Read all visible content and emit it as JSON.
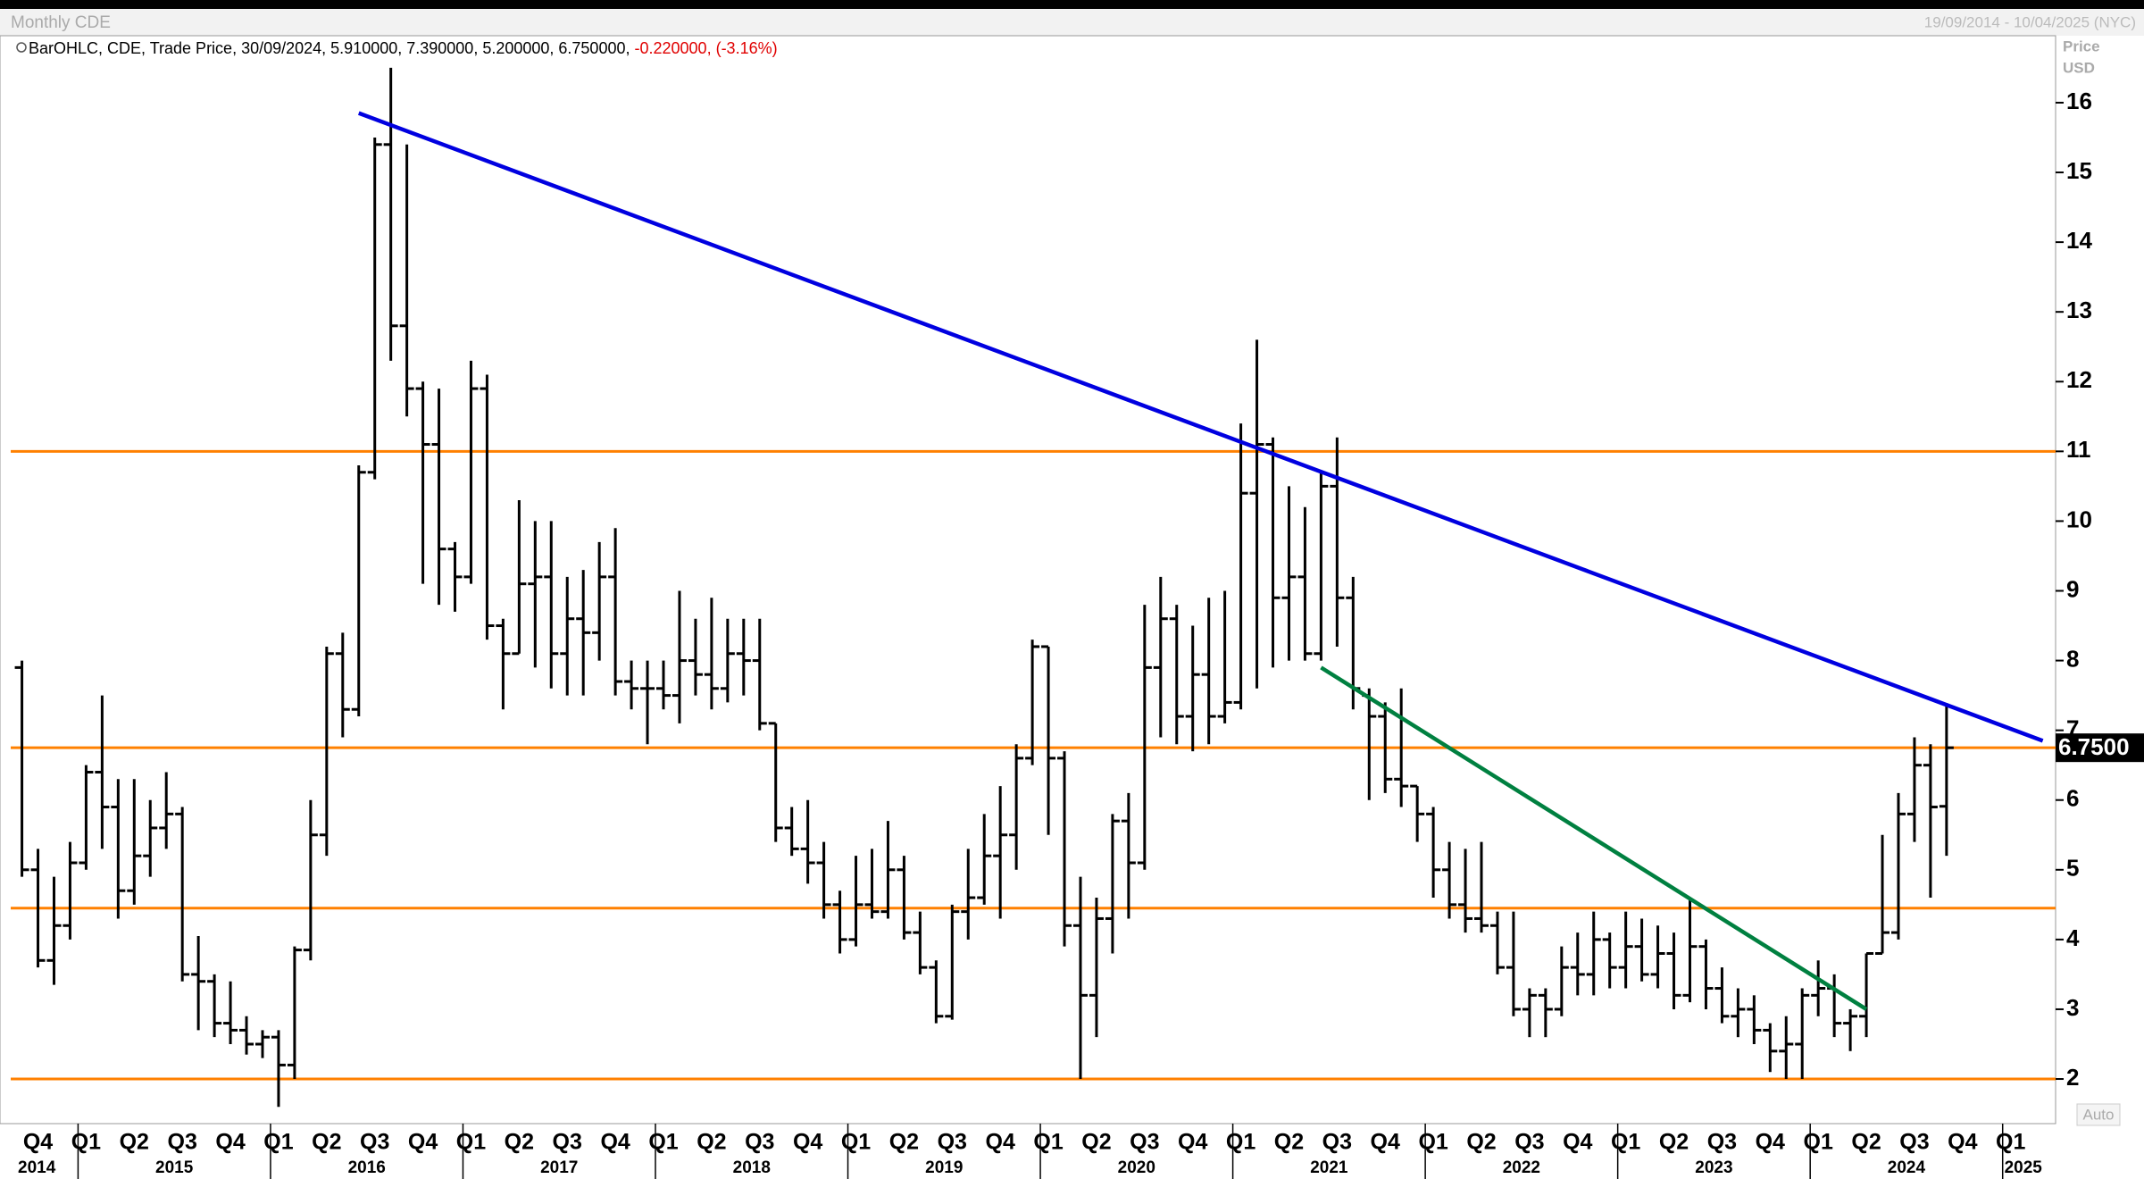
{
  "chart_data": {
    "type": "ohlc",
    "title": "Monthly CDE",
    "date_range": "19/09/2014 - 10/04/2025 (NYC)",
    "legend_text": "BarOHLC, CDE, Trade Price, 30/09/2024, 5.910000, 7.390000, 5.200000, 6.750000,",
    "legend_change": "-0.220000, (-3.16%)",
    "y_label": [
      "Price",
      "USD"
    ],
    "scale_mode": "Auto",
    "color": "#000000",
    "x": [
      "2014-09",
      "2014-10",
      "2014-11",
      "2014-12",
      "2015-01",
      "2015-02",
      "2015-03",
      "2015-04",
      "2015-05",
      "2015-06",
      "2015-07",
      "2015-08",
      "2015-09",
      "2015-10",
      "2015-11",
      "2015-12",
      "2016-01",
      "2016-02",
      "2016-03",
      "2016-04",
      "2016-05",
      "2016-06",
      "2016-07",
      "2016-08",
      "2016-09",
      "2016-10",
      "2016-11",
      "2016-12",
      "2017-01",
      "2017-02",
      "2017-03",
      "2017-04",
      "2017-05",
      "2017-06",
      "2017-07",
      "2017-08",
      "2017-09",
      "2017-10",
      "2017-11",
      "2017-12",
      "2018-01",
      "2018-02",
      "2018-03",
      "2018-04",
      "2018-05",
      "2018-06",
      "2018-07",
      "2018-08",
      "2018-09",
      "2018-10",
      "2018-11",
      "2018-12",
      "2019-01",
      "2019-02",
      "2019-03",
      "2019-04",
      "2019-05",
      "2019-06",
      "2019-07",
      "2019-08",
      "2019-09",
      "2019-10",
      "2019-11",
      "2019-12",
      "2020-01",
      "2020-02",
      "2020-03",
      "2020-04",
      "2020-05",
      "2020-06",
      "2020-07",
      "2020-08",
      "2020-09",
      "2020-10",
      "2020-11",
      "2020-12",
      "2021-01",
      "2021-02",
      "2021-03",
      "2021-04",
      "2021-05",
      "2021-06",
      "2021-07",
      "2021-08",
      "2021-09",
      "2021-10",
      "2021-11",
      "2021-12",
      "2022-01",
      "2022-02",
      "2022-03",
      "2022-04",
      "2022-05",
      "2022-06",
      "2022-07",
      "2022-08",
      "2022-09",
      "2022-10",
      "2022-11",
      "2022-12",
      "2023-01",
      "2023-02",
      "2023-03",
      "2023-04",
      "2023-05",
      "2023-06",
      "2023-07",
      "2023-08",
      "2023-09",
      "2023-10",
      "2023-11",
      "2023-12",
      "2024-01",
      "2024-02",
      "2024-03",
      "2024-04",
      "2024-05",
      "2024-06",
      "2024-07",
      "2024-08",
      "2024-09"
    ],
    "open": [
      7.9,
      5.0,
      3.7,
      4.2,
      5.1,
      6.4,
      5.9,
      4.7,
      5.2,
      5.6,
      5.8,
      3.5,
      3.4,
      2.8,
      2.7,
      2.5,
      2.6,
      2.2,
      3.85,
      5.5,
      8.1,
      7.3,
      10.7,
      15.4,
      12.8,
      11.9,
      11.1,
      9.6,
      9.2,
      11.9,
      8.5,
      8.1,
      9.1,
      9.2,
      8.1,
      8.6,
      8.4,
      9.2,
      7.7,
      7.6,
      7.6,
      7.5,
      8.0,
      7.8,
      7.6,
      8.1,
      8.0,
      7.1,
      5.6,
      5.3,
      5.1,
      4.5,
      4.0,
      4.5,
      4.4,
      5.0,
      4.1,
      3.6,
      2.9,
      4.4,
      4.6,
      5.2,
      5.5,
      6.6,
      8.2,
      6.6,
      4.2,
      3.2,
      4.3,
      5.7,
      5.1,
      7.9,
      8.6,
      7.2,
      7.8,
      7.2,
      7.4,
      10.4,
      11.1,
      8.9,
      9.2,
      8.1,
      10.5,
      8.9,
      7.5,
      7.2,
      6.3,
      6.2,
      5.8,
      5.0,
      4.5,
      4.3,
      4.2,
      3.6,
      3.0,
      3.2,
      3.0,
      3.6,
      3.5,
      4.0,
      3.6,
      3.9,
      3.5,
      3.8,
      3.2,
      3.9,
      3.3,
      2.9,
      3.0,
      2.7,
      2.4,
      2.5,
      3.2,
      3.3,
      2.8,
      2.9,
      3.8,
      4.1,
      5.8,
      6.5,
      5.91
    ],
    "high": [
      8.0,
      5.3,
      4.9,
      5.4,
      6.5,
      7.5,
      6.3,
      6.3,
      6.0,
      6.4,
      5.9,
      4.05,
      3.5,
      3.4,
      2.9,
      2.7,
      2.7,
      3.9,
      6.0,
      8.2,
      8.4,
      10.8,
      15.5,
      16.5,
      15.4,
      12.0,
      11.9,
      9.7,
      12.3,
      12.1,
      8.6,
      10.3,
      10.0,
      10.0,
      9.2,
      9.3,
      9.7,
      9.9,
      8.0,
      8.0,
      8.0,
      9.0,
      8.6,
      8.9,
      8.6,
      8.6,
      8.6,
      7.1,
      5.9,
      6.0,
      5.4,
      4.7,
      5.2,
      5.3,
      5.7,
      5.2,
      4.4,
      3.7,
      4.5,
      5.3,
      5.8,
      6.2,
      6.8,
      8.3,
      8.2,
      6.7,
      4.9,
      4.6,
      5.8,
      6.1,
      8.8,
      9.2,
      8.8,
      8.5,
      8.9,
      9.0,
      11.4,
      12.6,
      11.2,
      10.5,
      10.2,
      10.7,
      11.2,
      9.2,
      7.6,
      7.4,
      7.6,
      6.2,
      5.9,
      5.4,
      5.3,
      5.4,
      4.4,
      4.4,
      3.3,
      3.3,
      3.9,
      4.1,
      4.4,
      4.1,
      4.4,
      4.3,
      4.2,
      4.1,
      4.6,
      4.0,
      3.6,
      3.3,
      3.2,
      2.8,
      2.9,
      3.3,
      3.7,
      3.5,
      3.0,
      3.8,
      5.5,
      6.1,
      6.9,
      6.8,
      7.39
    ],
    "low": [
      4.9,
      3.6,
      3.35,
      4.0,
      5.0,
      5.3,
      4.3,
      4.5,
      4.9,
      5.3,
      3.4,
      2.7,
      2.6,
      2.5,
      2.35,
      2.3,
      1.6,
      2.0,
      3.7,
      5.2,
      6.9,
      7.2,
      10.6,
      12.3,
      11.5,
      9.1,
      8.8,
      8.7,
      9.1,
      8.3,
      7.3,
      8.1,
      7.9,
      7.6,
      7.5,
      7.5,
      8.0,
      7.5,
      7.3,
      6.8,
      7.3,
      7.1,
      7.5,
      7.3,
      7.4,
      7.5,
      7.0,
      5.4,
      5.2,
      4.8,
      4.3,
      3.8,
      3.9,
      4.3,
      4.3,
      4.0,
      3.5,
      2.8,
      2.85,
      4.0,
      4.5,
      4.3,
      5.0,
      6.5,
      5.5,
      3.9,
      2.0,
      2.6,
      3.8,
      4.3,
      5.0,
      6.9,
      6.8,
      6.7,
      6.8,
      7.1,
      7.3,
      7.6,
      7.9,
      8.0,
      8.0,
      8.0,
      8.2,
      7.3,
      6.0,
      6.1,
      5.9,
      5.4,
      4.6,
      4.3,
      4.1,
      4.1,
      3.5,
      2.9,
      2.6,
      2.6,
      2.9,
      3.2,
      3.2,
      3.3,
      3.3,
      3.4,
      3.3,
      3.0,
      3.1,
      3.0,
      2.8,
      2.6,
      2.5,
      2.1,
      2.0,
      2.0,
      2.9,
      2.6,
      2.4,
      2.6,
      3.8,
      4.0,
      5.4,
      4.6,
      5.2
    ],
    "close": [
      5.0,
      3.7,
      4.2,
      5.1,
      6.4,
      5.9,
      4.7,
      5.2,
      5.6,
      5.8,
      3.5,
      3.4,
      2.8,
      2.7,
      2.5,
      2.6,
      2.2,
      3.85,
      5.5,
      8.1,
      7.3,
      10.7,
      15.4,
      12.8,
      11.9,
      11.1,
      9.6,
      9.2,
      11.9,
      8.5,
      8.1,
      9.1,
      9.2,
      8.1,
      8.6,
      8.4,
      9.2,
      7.7,
      7.6,
      7.6,
      7.5,
      8.0,
      7.8,
      7.6,
      8.1,
      8.0,
      7.1,
      5.6,
      5.3,
      5.1,
      4.5,
      4.0,
      4.5,
      4.4,
      5.0,
      4.1,
      3.6,
      2.9,
      4.4,
      4.6,
      5.2,
      5.5,
      6.6,
      8.2,
      6.6,
      4.2,
      3.2,
      4.3,
      5.7,
      5.1,
      7.9,
      8.6,
      7.2,
      7.8,
      7.2,
      7.4,
      10.4,
      11.1,
      8.9,
      9.2,
      8.1,
      10.5,
      8.9,
      7.6,
      7.2,
      6.3,
      6.2,
      5.8,
      5.0,
      4.5,
      4.3,
      4.2,
      3.6,
      3.0,
      3.2,
      3.0,
      3.6,
      3.5,
      4.0,
      3.6,
      3.9,
      3.5,
      3.8,
      3.2,
      3.9,
      3.3,
      2.9,
      3.0,
      2.7,
      2.4,
      2.5,
      3.2,
      3.3,
      2.8,
      2.9,
      3.8,
      4.1,
      5.8,
      6.5,
      5.9,
      6.75
    ],
    "ylim": [
      1.36,
      16.96
    ],
    "yticks": [
      2,
      3,
      4,
      5,
      6,
      7,
      8,
      9,
      10,
      11,
      12,
      13,
      14,
      15,
      16
    ],
    "xticks": [
      {
        "value": "2014-10",
        "label": "Q4"
      },
      {
        "value": "2015-01",
        "label": "Q1"
      },
      {
        "value": "2015-04",
        "label": "Q2"
      },
      {
        "value": "2015-07",
        "label": "Q3"
      },
      {
        "value": "2015-10",
        "label": "Q4"
      },
      {
        "value": "2016-01",
        "label": "Q1"
      },
      {
        "value": "2016-04",
        "label": "Q2"
      },
      {
        "value": "2016-07",
        "label": "Q3"
      },
      {
        "value": "2016-10",
        "label": "Q4"
      },
      {
        "value": "2017-01",
        "label": "Q1"
      },
      {
        "value": "2017-04",
        "label": "Q2"
      },
      {
        "value": "2017-07",
        "label": "Q3"
      },
      {
        "value": "2017-10",
        "label": "Q4"
      },
      {
        "value": "2018-01",
        "label": "Q1"
      },
      {
        "value": "2018-04",
        "label": "Q2"
      },
      {
        "value": "2018-07",
        "label": "Q3"
      },
      {
        "value": "2018-10",
        "label": "Q4"
      },
      {
        "value": "2019-01",
        "label": "Q1"
      },
      {
        "value": "2019-04",
        "label": "Q2"
      },
      {
        "value": "2019-07",
        "label": "Q3"
      },
      {
        "value": "2019-10",
        "label": "Q4"
      },
      {
        "value": "2020-01",
        "label": "Q1"
      },
      {
        "value": "2020-04",
        "label": "Q2"
      },
      {
        "value": "2020-07",
        "label": "Q3"
      },
      {
        "value": "2020-10",
        "label": "Q4"
      },
      {
        "value": "2021-01",
        "label": "Q1"
      },
      {
        "value": "2021-04",
        "label": "Q2"
      },
      {
        "value": "2021-07",
        "label": "Q3"
      },
      {
        "value": "2021-10",
        "label": "Q4"
      },
      {
        "value": "2022-01",
        "label": "Q1"
      },
      {
        "value": "2022-04",
        "label": "Q2"
      },
      {
        "value": "2022-07",
        "label": "Q3"
      },
      {
        "value": "2022-10",
        "label": "Q4"
      },
      {
        "value": "2023-01",
        "label": "Q1"
      },
      {
        "value": "2023-04",
        "label": "Q2"
      },
      {
        "value": "2023-07",
        "label": "Q3"
      },
      {
        "value": "2023-10",
        "label": "Q4"
      },
      {
        "value": "2024-01",
        "label": "Q1"
      },
      {
        "value": "2024-04",
        "label": "Q2"
      },
      {
        "value": "2024-07",
        "label": "Q3"
      },
      {
        "value": "2024-10",
        "label": "Q4"
      },
      {
        "value": "2025-01",
        "label": "Q1"
      }
    ],
    "years": [
      "2014",
      "2015",
      "2016",
      "2017",
      "2018",
      "2019",
      "2020",
      "2021",
      "2022",
      "2023",
      "2024",
      "2025"
    ],
    "reference_lines": [
      11,
      6.75,
      4.45,
      2.0
    ],
    "reference_color": "#ff8000",
    "last_price": {
      "value": 6.75,
      "label": "6.7500"
    },
    "trendlines": [
      {
        "color": "#0000e0",
        "from": {
          "x": "2016-06",
          "y": 15.85
        },
        "to": {
          "x": "2025-03",
          "y": 6.85
        }
      },
      {
        "color": "#008040",
        "from": {
          "x": "2021-06",
          "y": 7.9
        },
        "to": {
          "x": "2024-04",
          "y": 3.0
        }
      }
    ]
  }
}
